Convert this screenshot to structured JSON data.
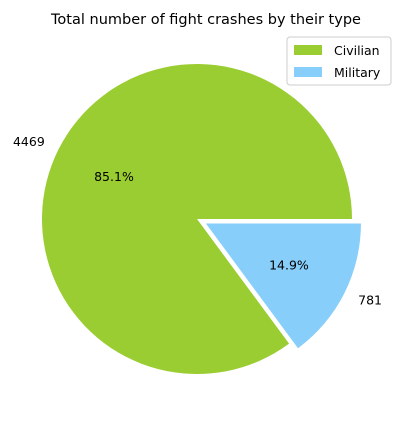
{
  "chart_data": {
    "type": "pie",
    "title": "Total number of fight crashes by their type",
    "categories": [
      "Civilian",
      "Military"
    ],
    "values": [
      4469,
      781
    ],
    "percent_labels": [
      "85.1%",
      "14.9%"
    ],
    "value_labels": [
      "4469",
      "781"
    ],
    "colors": [
      "#9acd32",
      "#87cefa"
    ],
    "exploded": [
      false,
      true
    ],
    "start_angle_deg": 0,
    "direction": "counterclockwise",
    "legend": {
      "placement": "upper right",
      "entries": [
        "Civilian",
        "Military"
      ]
    }
  }
}
